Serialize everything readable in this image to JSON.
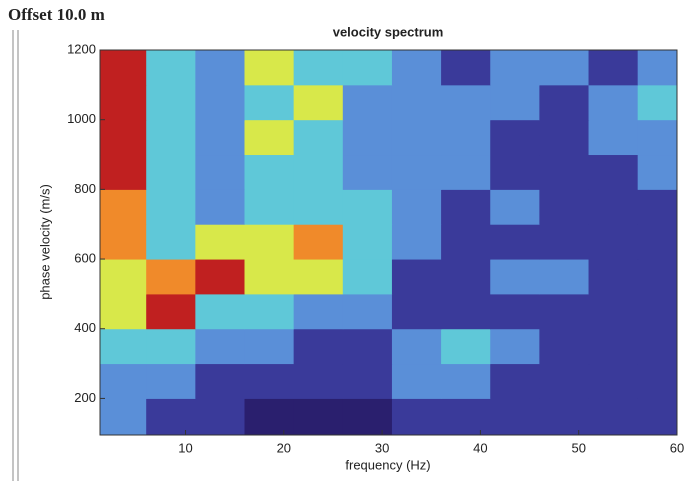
{
  "header": "Offset 10.0 m",
  "chart_data": {
    "type": "heatmap",
    "title": "velocity spectrum",
    "x_label": "frequency (Hz)",
    "y_label": "phase velocity (m/s)",
    "xlim": [
      1.3,
      60
    ],
    "ylim": [
      95,
      1200
    ],
    "xticks": [
      10,
      20,
      30,
      40,
      50,
      60
    ],
    "yticks": [
      200,
      400,
      600,
      800,
      1000,
      1200
    ],
    "xbins": [
      1.3,
      6,
      11,
      16,
      21,
      26,
      31,
      36,
      41,
      46,
      51,
      56,
      60
    ],
    "ybins": [
      95,
      200,
      300,
      400,
      500,
      600,
      700,
      800,
      900,
      1000,
      1100,
      1200
    ],
    "colors": [
      "#2a1f6e",
      "#3a3a9a",
      "#5a8fd8",
      "#5fc8d8",
      "#d8e84a",
      "#f08a2a",
      "#c02020"
    ],
    "z": [
      [
        2,
        1,
        1,
        0,
        0,
        0,
        1,
        1,
        1,
        1,
        1,
        1
      ],
      [
        2,
        2,
        1,
        1,
        1,
        1,
        2,
        2,
        1,
        1,
        1,
        1
      ],
      [
        3,
        3,
        2,
        2,
        1,
        1,
        2,
        3,
        2,
        1,
        1,
        1
      ],
      [
        4,
        6,
        3,
        3,
        2,
        2,
        1,
        1,
        1,
        1,
        1,
        1
      ],
      [
        4,
        5,
        6,
        4,
        4,
        3,
        1,
        1,
        2,
        2,
        1,
        1
      ],
      [
        5,
        3,
        4,
        4,
        5,
        3,
        2,
        1,
        1,
        1,
        1,
        1
      ],
      [
        5,
        3,
        2,
        3,
        3,
        3,
        2,
        1,
        2,
        1,
        1,
        1
      ],
      [
        6,
        3,
        2,
        3,
        3,
        2,
        2,
        2,
        1,
        1,
        1,
        2
      ],
      [
        6,
        3,
        2,
        4,
        3,
        2,
        2,
        2,
        1,
        1,
        2,
        2
      ],
      [
        6,
        3,
        2,
        3,
        4,
        2,
        2,
        2,
        2,
        1,
        2,
        3
      ],
      [
        6,
        3,
        2,
        4,
        3,
        3,
        2,
        1,
        2,
        2,
        1,
        2
      ]
    ]
  }
}
